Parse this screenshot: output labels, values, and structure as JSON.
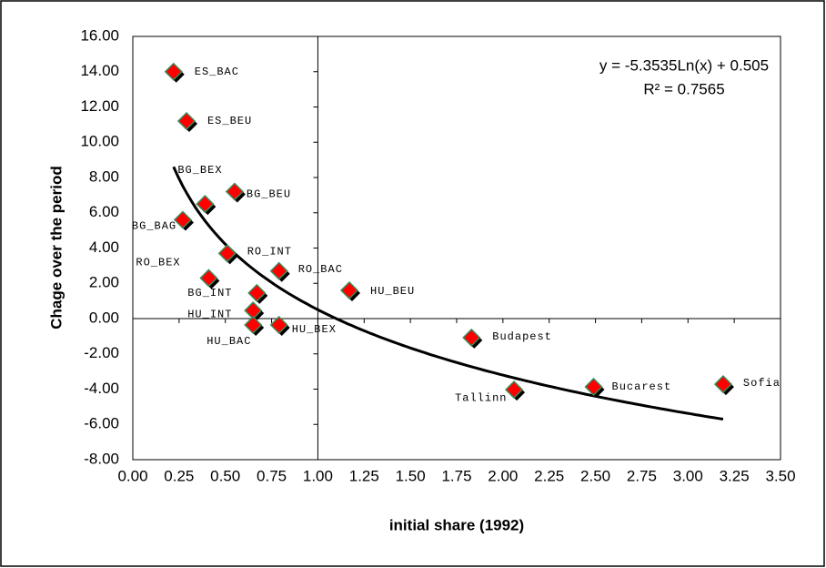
{
  "chart_data": {
    "type": "scatter",
    "y_label": "Chage over the period",
    "x_label": "initial share (1992)",
    "equation": "y = -5.3535Ln(x) + 0.505",
    "r_squared": "R² = 0.7565",
    "trendline": {
      "type": "log",
      "a": -5.3535,
      "b": 0.505
    },
    "point_labels": [
      "ES_BAC",
      "ES_BEU",
      "BG_BEX",
      "BG_BAG",
      "BG_BEU",
      "RO_INT",
      "RO_BEX",
      "RO_BAC",
      "BG_INT",
      "HU_BEU",
      "HU_INT",
      "HU_BAC",
      "HU_BEX",
      "Budapest",
      "Tallinn",
      "Bucarest",
      "Sofia"
    ],
    "x": [
      0.22,
      0.29,
      0.39,
      0.27,
      0.55,
      0.51,
      0.41,
      0.79,
      0.67,
      1.17,
      0.65,
      0.65,
      0.79,
      1.83,
      2.06,
      2.49,
      3.19
    ],
    "values": [
      14.0,
      11.2,
      6.5,
      5.6,
      7.2,
      3.7,
      2.3,
      2.7,
      1.45,
      1.6,
      0.46,
      -0.36,
      -0.36,
      -1.08,
      -4.03,
      -3.87,
      -3.72
    ],
    "color": "#ff0000",
    "xlim": [
      0,
      3.5
    ],
    "ylim": [
      -8,
      16
    ],
    "xticks": [
      {
        "value": 0,
        "label": "0.00"
      },
      {
        "value": 0.25,
        "label": "0.25"
      },
      {
        "value": 0.5,
        "label": "0.50"
      },
      {
        "value": 0.75,
        "label": "0.75"
      },
      {
        "value": 1,
        "label": "1.00"
      },
      {
        "value": 1.25,
        "label": "1.25"
      },
      {
        "value": 1.5,
        "label": "1.50"
      },
      {
        "value": 1.75,
        "label": "1.75"
      },
      {
        "value": 2,
        "label": "2.00"
      },
      {
        "value": 2.25,
        "label": "2.25"
      },
      {
        "value": 2.5,
        "label": "2.50"
      },
      {
        "value": 2.75,
        "label": "2.75"
      },
      {
        "value": 3,
        "label": "3.00"
      },
      {
        "value": 3.25,
        "label": "3.25"
      },
      {
        "value": 3.5,
        "label": "3.50"
      }
    ],
    "yticks": [
      {
        "value": -8,
        "label": "-8.00"
      },
      {
        "value": -6,
        "label": "-6.00"
      },
      {
        "value": -4,
        "label": "-4.00"
      },
      {
        "value": -2,
        "label": "-2.00"
      },
      {
        "value": 0,
        "label": "0.00"
      },
      {
        "value": 2,
        "label": "2.00"
      },
      {
        "value": 4,
        "label": "4.00"
      },
      {
        "value": 6,
        "label": "6.00"
      },
      {
        "value": 8,
        "label": "8.00"
      },
      {
        "value": 10,
        "label": "10.00"
      },
      {
        "value": 12,
        "label": "12.00"
      },
      {
        "value": 14,
        "label": "14.00"
      },
      {
        "value": 16,
        "label": "16.00"
      }
    ],
    "x_axis_crosses": 1,
    "y_axis_crosses": 0
  }
}
